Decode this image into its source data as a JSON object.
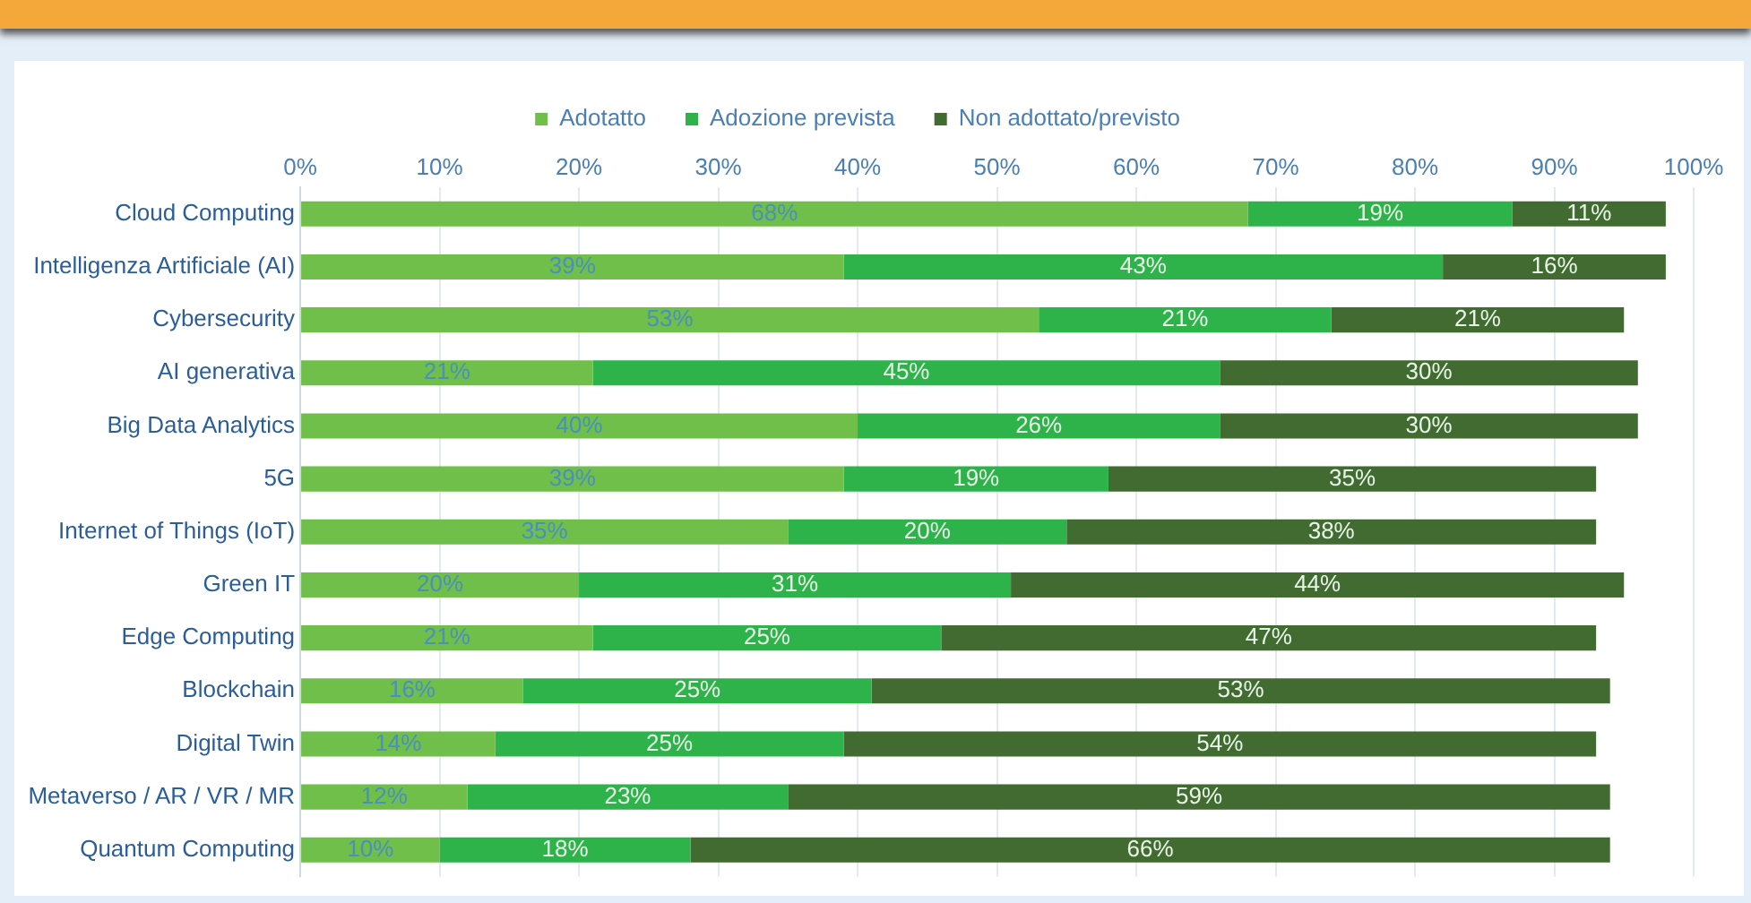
{
  "chart_data": {
    "type": "bar",
    "orientation": "horizontal",
    "stacked": true,
    "grid": "x",
    "legend": "top",
    "categories": [
      "Cloud Computing",
      "Intelligenza Artificiale (AI)",
      "Cybersecurity",
      "AI generativa",
      "Big Data Analytics",
      "5G",
      "Internet of Things (IoT)",
      "Green IT",
      "Edge Computing",
      "Blockchain",
      "Digital Twin",
      "Metaverso / AR / VR / MR",
      "Quantum Computing"
    ],
    "series": [
      {
        "name": "Adotatto",
        "color": "#6fbf4a",
        "values": [
          68,
          39,
          53,
          21,
          40,
          39,
          35,
          20,
          21,
          16,
          14,
          12,
          10
        ],
        "value_labels": [
          "68%",
          "39%",
          "53%",
          "21%",
          "40%",
          "39%",
          "35%",
          "20%",
          "21%",
          "16%",
          "14%",
          "12%",
          "10%"
        ]
      },
      {
        "name": "Adozione prevista",
        "color": "#2db34a",
        "values": [
          19,
          43,
          21,
          45,
          26,
          19,
          20,
          31,
          25,
          25,
          25,
          23,
          18
        ],
        "value_labels": [
          "19%",
          "43%",
          "21%",
          "45%",
          "26%",
          "19%",
          "20%",
          "31%",
          "25%",
          "25%",
          "25%",
          "23%",
          "18%"
        ]
      },
      {
        "name": "Non adottato/previsto",
        "color": "#416b30",
        "values": [
          11,
          16,
          21,
          30,
          30,
          35,
          38,
          44,
          47,
          53,
          54,
          59,
          66
        ],
        "value_labels": [
          "11%",
          "16%",
          "21%",
          "30%",
          "30%",
          "35%",
          "38%",
          "44%",
          "47%",
          "53%",
          "54%",
          "59%",
          "66%"
        ]
      }
    ],
    "xlim": [
      0,
      100
    ],
    "xticks": [
      {
        "value": 0,
        "label": "0%"
      },
      {
        "value": 10,
        "label": "10%"
      },
      {
        "value": 20,
        "label": "20%"
      },
      {
        "value": 30,
        "label": "30%"
      },
      {
        "value": 40,
        "label": "40%"
      },
      {
        "value": 50,
        "label": "50%"
      },
      {
        "value": 60,
        "label": "60%"
      },
      {
        "value": 70,
        "label": "70%"
      },
      {
        "value": 80,
        "label": "80%"
      },
      {
        "value": 90,
        "label": "90%"
      },
      {
        "value": 100,
        "label": "100%"
      }
    ]
  }
}
